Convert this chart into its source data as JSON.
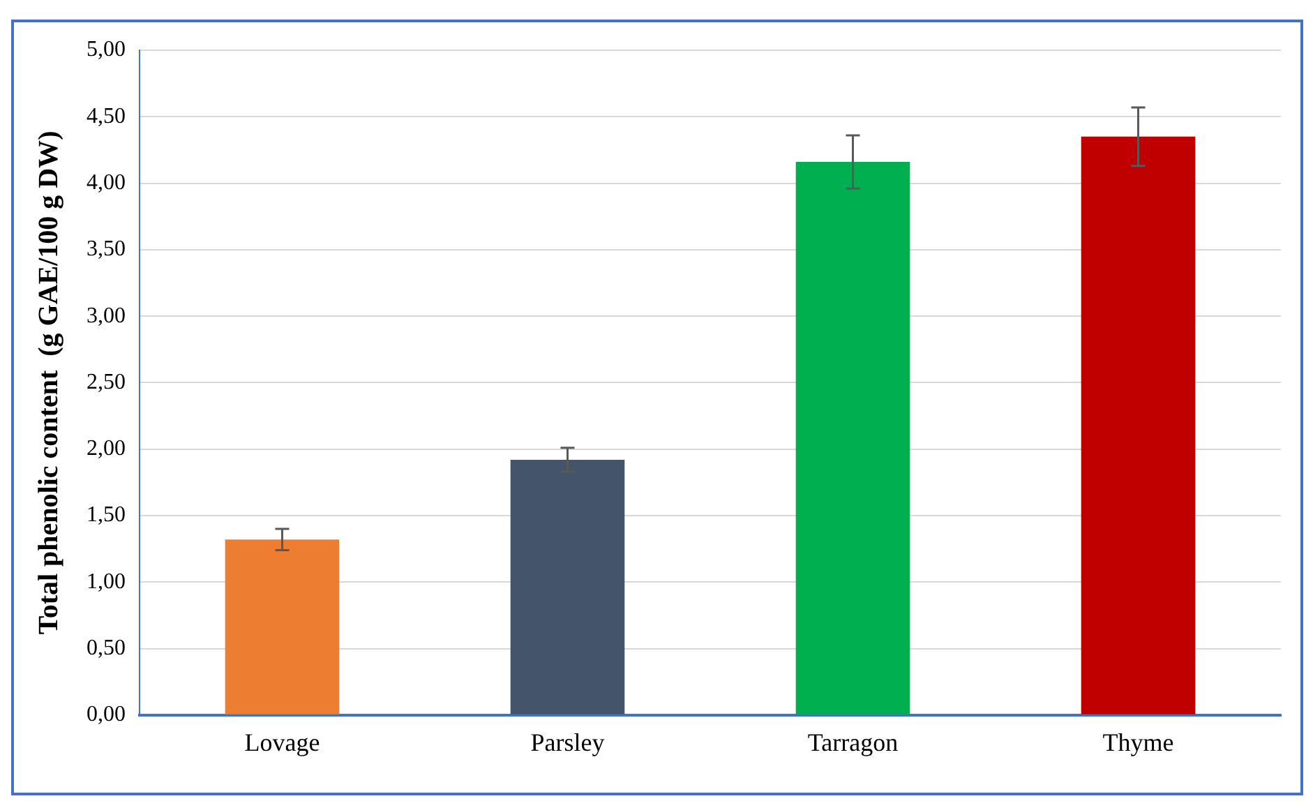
{
  "chart_data": {
    "type": "bar",
    "ylabel": "Total phenolic content  (g GAE/100 g DW)",
    "categories": [
      "Lovage",
      "Parsley",
      "Tarragon",
      "Thyme"
    ],
    "values": [
      1.32,
      1.92,
      4.16,
      4.35
    ],
    "colors": [
      "#ed7d31",
      "#44546a",
      "#00b050",
      "#c00000"
    ],
    "errors": [
      0.08,
      0.09,
      0.2,
      0.22
    ],
    "ylim": [
      0,
      5
    ],
    "yticks": [
      {
        "value": 0,
        "label": "0,00"
      },
      {
        "value": 0.5,
        "label": "0,50"
      },
      {
        "value": 1,
        "label": "1,00"
      },
      {
        "value": 1.5,
        "label": "1,50"
      },
      {
        "value": 2,
        "label": "2,00"
      },
      {
        "value": 2.5,
        "label": "2,50"
      },
      {
        "value": 3,
        "label": "3,00"
      },
      {
        "value": 3.5,
        "label": "3,50"
      },
      {
        "value": 4,
        "label": "4,00"
      },
      {
        "value": 4.5,
        "label": "4,50"
      },
      {
        "value": 5,
        "label": "5,00"
      }
    ],
    "grid": "y"
  }
}
